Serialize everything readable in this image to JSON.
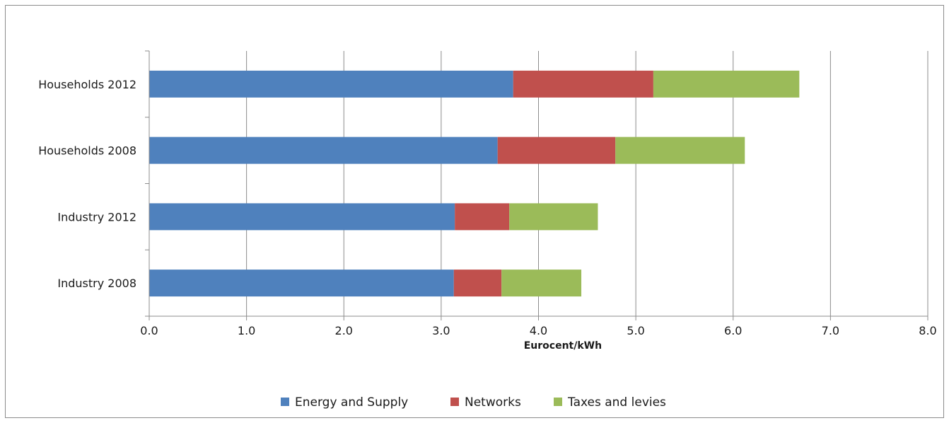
{
  "chart_data": {
    "type": "bar",
    "orientation": "horizontal",
    "stacked": true,
    "categories": [
      "Industry 2008",
      "Industry 2012",
      "Households 2008",
      "Households 2012"
    ],
    "series": [
      {
        "name": "Energy and Supply",
        "color": "#4f81bd",
        "values": [
          3.13,
          3.14,
          3.58,
          3.74
        ]
      },
      {
        "name": "Networks",
        "color": "#c0504d",
        "values": [
          0.49,
          0.56,
          1.21,
          1.44
        ]
      },
      {
        "name": "Taxes and levies",
        "color": "#9bbb59",
        "values": [
          0.82,
          0.91,
          1.33,
          1.5
        ]
      }
    ],
    "xlabel": "Eurocent/kWh",
    "xlim": [
      0,
      8
    ],
    "xticks": [
      "0.0",
      "1.0",
      "2.0",
      "3.0",
      "4.0",
      "5.0",
      "6.0",
      "7.0",
      "8.0"
    ],
    "grid": "vertical major gridlines",
    "legend_position": "bottom"
  }
}
